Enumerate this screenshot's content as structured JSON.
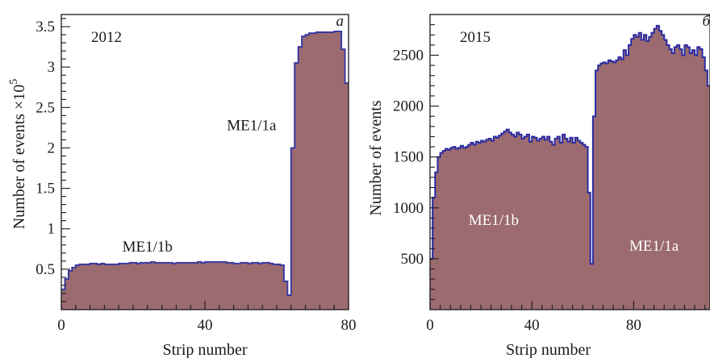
{
  "chart_data": [
    {
      "type": "area",
      "panel_label": "a",
      "year_label": "2012",
      "xlabel": "Strip number",
      "ylabel": "Number of events ×10",
      "ylabel_exponent": "5",
      "xlim": [
        0,
        80
      ],
      "ylim": [
        0,
        3.65
      ],
      "xticks": [
        0,
        40,
        80
      ],
      "xtick_labels": [
        "0",
        "40",
        "80"
      ],
      "yticks": [
        0.5,
        1,
        1.5,
        2,
        2.5,
        3,
        3.5
      ],
      "ytick_labels": [
        "0.5",
        "1",
        "1.5",
        "2",
        "2.5",
        "3",
        "3.5"
      ],
      "fill_color": "#9b6b70",
      "line_color": "#3a3aa0",
      "annotations": [
        {
          "text": "ME1/1b",
          "x": 24,
          "y": 0.72,
          "color": "#1a1a1a"
        },
        {
          "text": "ME1/1a",
          "x": 53,
          "y": 2.22,
          "color": "#1a1a1a"
        }
      ],
      "series": [
        {
          "x": [
            0,
            1,
            2,
            3,
            4,
            5,
            6,
            7,
            8,
            9,
            10,
            11,
            12,
            13,
            14,
            15,
            16,
            17,
            18,
            19,
            20,
            21,
            22,
            23,
            24,
            25,
            26,
            27,
            28,
            29,
            30,
            31,
            32,
            33,
            34,
            35,
            36,
            37,
            38,
            39,
            40,
            41,
            42,
            43,
            44,
            45,
            46,
            47,
            48,
            49,
            50,
            51,
            52,
            53,
            54,
            55,
            56,
            57,
            58,
            59,
            60,
            61,
            62,
            63,
            64,
            65,
            66,
            67,
            68,
            69,
            70,
            71,
            72,
            73,
            74,
            75,
            76,
            77,
            78,
            79
          ],
          "values": [
            0.25,
            0.38,
            0.48,
            0.52,
            0.55,
            0.56,
            0.56,
            0.56,
            0.57,
            0.57,
            0.56,
            0.57,
            0.56,
            0.56,
            0.56,
            0.56,
            0.57,
            0.57,
            0.57,
            0.58,
            0.58,
            0.57,
            0.58,
            0.58,
            0.58,
            0.59,
            0.58,
            0.58,
            0.58,
            0.58,
            0.58,
            0.57,
            0.58,
            0.58,
            0.58,
            0.58,
            0.58,
            0.58,
            0.59,
            0.58,
            0.59,
            0.59,
            0.59,
            0.59,
            0.59,
            0.59,
            0.58,
            0.58,
            0.57,
            0.57,
            0.58,
            0.58,
            0.57,
            0.58,
            0.58,
            0.57,
            0.58,
            0.58,
            0.57,
            0.56,
            0.56,
            0.55,
            0.35,
            0.18,
            2.0,
            3.05,
            3.25,
            3.38,
            3.4,
            3.42,
            3.42,
            3.43,
            3.43,
            3.43,
            3.43,
            3.43,
            3.44,
            3.44,
            3.22,
            2.8
          ]
        }
      ]
    },
    {
      "type": "area",
      "panel_label": "б",
      "year_label": "2015",
      "xlabel": "Strip number",
      "ylabel": "Number of events",
      "xlim": [
        0,
        110
      ],
      "ylim": [
        0,
        2900
      ],
      "xticks": [
        0,
        40,
        80
      ],
      "xtick_labels": [
        "0",
        "40",
        "80"
      ],
      "yticks": [
        500,
        1000,
        1500,
        2000,
        2500
      ],
      "ytick_labels": [
        "500",
        "1000",
        "1500",
        "2000",
        "2500"
      ],
      "fill_color": "#9b6b70",
      "line_color": "#2a2aa0",
      "annotations": [
        {
          "text": "ME1/1b",
          "x": 25,
          "y": 830,
          "color": "#ffffff"
        },
        {
          "text": "ME1/1a",
          "x": 88,
          "y": 580,
          "color": "#ffffff"
        }
      ],
      "series": [
        {
          "x": [
            0,
            1,
            2,
            3,
            4,
            5,
            6,
            7,
            8,
            9,
            10,
            11,
            12,
            13,
            14,
            15,
            16,
            17,
            18,
            19,
            20,
            21,
            22,
            23,
            24,
            25,
            26,
            27,
            28,
            29,
            30,
            31,
            32,
            33,
            34,
            35,
            36,
            37,
            38,
            39,
            40,
            41,
            42,
            43,
            44,
            45,
            46,
            47,
            48,
            49,
            50,
            51,
            52,
            53,
            54,
            55,
            56,
            57,
            58,
            59,
            60,
            61,
            62,
            63,
            64,
            65,
            66,
            67,
            68,
            69,
            70,
            71,
            72,
            73,
            74,
            75,
            76,
            77,
            78,
            79,
            80,
            81,
            82,
            83,
            84,
            85,
            86,
            87,
            88,
            89,
            90,
            91,
            92,
            93,
            94,
            95,
            96,
            97,
            98,
            99,
            100,
            101,
            102,
            103,
            104,
            105,
            106,
            107,
            108,
            109
          ],
          "values": [
            500,
            1100,
            1350,
            1500,
            1540,
            1560,
            1580,
            1570,
            1590,
            1600,
            1580,
            1590,
            1610,
            1590,
            1600,
            1620,
            1640,
            1620,
            1650,
            1640,
            1660,
            1650,
            1670,
            1680,
            1660,
            1700,
            1690,
            1710,
            1730,
            1750,
            1770,
            1740,
            1720,
            1700,
            1740,
            1720,
            1680,
            1700,
            1720,
            1650,
            1700,
            1690,
            1660,
            1680,
            1700,
            1670,
            1700,
            1650,
            1620,
            1680,
            1700,
            1640,
            1720,
            1680,
            1650,
            1690,
            1640,
            1690,
            1660,
            1640,
            1620,
            1600,
            1150,
            450,
            1900,
            2350,
            2400,
            2420,
            2430,
            2420,
            2450,
            2440,
            2430,
            2450,
            2480,
            2460,
            2550,
            2500,
            2600,
            2660,
            2700,
            2680,
            2720,
            2650,
            2700,
            2640,
            2680,
            2720,
            2760,
            2790,
            2740,
            2700,
            2650,
            2600,
            2560,
            2520,
            2580,
            2600,
            2560,
            2500,
            2600,
            2580,
            2520,
            2550,
            2500,
            2580,
            2560,
            2480,
            2350,
            2200
          ]
        }
      ]
    }
  ]
}
